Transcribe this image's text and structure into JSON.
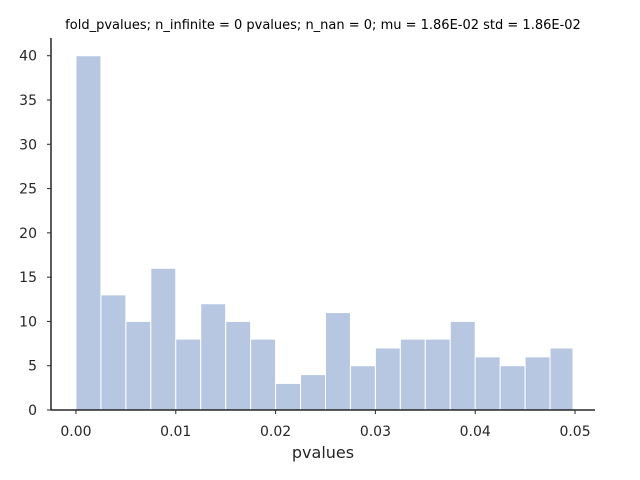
{
  "chart_data": {
    "type": "bar",
    "title": "fold_pvalues; n_infinite = 0 pvalues; n_nan = 0; mu = 1.86E-02 std = 1.86E-02",
    "xlabel": "pvalues",
    "ylabel": "",
    "bin_edges": [
      0.0,
      0.0025,
      0.005,
      0.0075,
      0.01,
      0.0125,
      0.015,
      0.0175,
      0.02,
      0.0225,
      0.025,
      0.0275,
      0.03,
      0.0325,
      0.035,
      0.0375,
      0.04,
      0.0425,
      0.045,
      0.0475,
      0.0498
    ],
    "values": [
      40,
      13,
      10,
      16,
      8,
      12,
      10,
      8,
      3,
      4,
      11,
      5,
      7,
      8,
      8,
      10,
      6,
      5,
      6,
      7
    ],
    "xlim": [
      -0.0025,
      0.052
    ],
    "ylim": [
      0,
      42
    ],
    "xticks": [
      0.0,
      0.01,
      0.02,
      0.03,
      0.04,
      0.05
    ],
    "xtick_labels": [
      "0.00",
      "0.01",
      "0.02",
      "0.03",
      "0.04",
      "0.05"
    ],
    "yticks": [
      0,
      5,
      10,
      15,
      20,
      25,
      30,
      35,
      40
    ],
    "ytick_labels": [
      "0",
      "5",
      "10",
      "15",
      "20",
      "25",
      "30",
      "35",
      "40"
    ],
    "grid": false,
    "bar_color": "#b7c7e1"
  }
}
